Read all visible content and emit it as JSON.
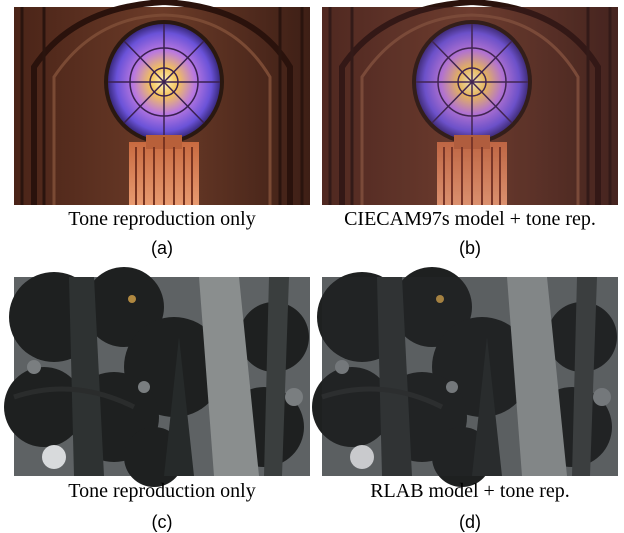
{
  "panels": [
    {
      "caption": "Tone reproduction only",
      "label": "(a)"
    },
    {
      "caption": "CIECAM97s model + tone rep.",
      "label": "(b)"
    },
    {
      "caption": "Tone reproduction only",
      "label": "(c)"
    },
    {
      "caption": "RLAB model + tone rep.",
      "label": "(d)"
    }
  ]
}
